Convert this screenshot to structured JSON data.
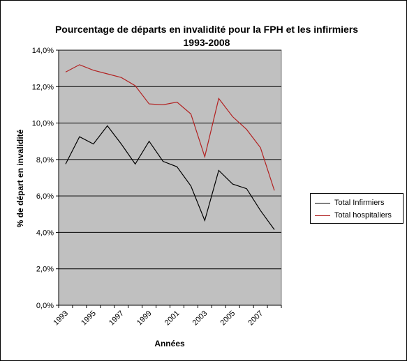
{
  "chart_data": {
    "type": "line",
    "title": "Pourcentage de départs en invalidité pour la FPH et les infirmiers 1993-2008",
    "xlabel": "Années",
    "ylabel": "% de départ en invalidité",
    "x": [
      1993,
      1994,
      1995,
      1996,
      1997,
      1998,
      1999,
      2000,
      2001,
      2002,
      2003,
      2004,
      2005,
      2006,
      2007,
      2008
    ],
    "x_tick_labels": [
      "1993",
      "1995",
      "1997",
      "1999",
      "2001",
      "2003",
      "2005",
      "2007"
    ],
    "y_tick_labels": [
      "0,0%",
      "2,0%",
      "4,0%",
      "6,0%",
      "8,0%",
      "10,0%",
      "12,0%",
      "14,0%"
    ],
    "ylim": [
      0,
      14
    ],
    "grid": true,
    "legend_position": "right",
    "plot_background": "#c0c0c0",
    "series": [
      {
        "name": "Total Infirmiers",
        "color": "#000000",
        "values": [
          7.75,
          9.25,
          8.85,
          9.85,
          8.85,
          7.75,
          9.0,
          7.9,
          7.6,
          6.55,
          4.65,
          7.4,
          6.65,
          6.4,
          5.2,
          4.15
        ]
      },
      {
        "name": "Total hospitaliers",
        "color": "#b22222",
        "values": [
          12.8,
          13.2,
          12.9,
          12.7,
          12.5,
          12.05,
          11.05,
          11.0,
          11.15,
          10.5,
          8.15,
          11.35,
          10.35,
          9.65,
          8.65,
          6.3
        ]
      }
    ]
  }
}
